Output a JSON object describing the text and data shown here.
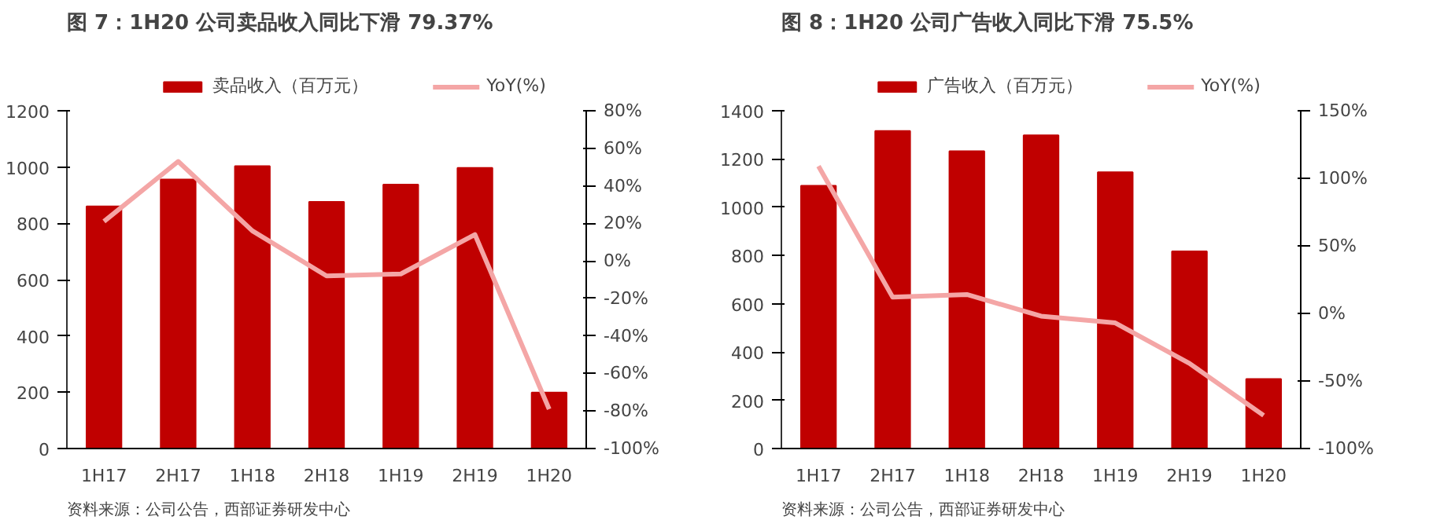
{
  "chart_data": [
    {
      "type": "bar",
      "title": "图 7：1H20 公司卖品收入同比下滑 79.37%",
      "categories": [
        "1H17",
        "2H17",
        "1H18",
        "2H18",
        "1H19",
        "2H19",
        "1H20"
      ],
      "series": [
        {
          "name": "卖品收入（百万元）",
          "color": "#c00000",
          "values": [
            860,
            956,
            1003,
            876,
            938,
            997,
            199
          ]
        },
        {
          "name": "YoY(%)",
          "color": "#f4a6a6",
          "type": "line",
          "axis": "y2",
          "values": [
            21,
            53,
            16,
            -8,
            -7,
            14,
            -79
          ]
        }
      ],
      "ylim": [
        0,
        1200
      ],
      "yticks": [
        0,
        200,
        400,
        600,
        800,
        1000,
        1200
      ],
      "y2lim": [
        -100,
        80
      ],
      "y2ticks": [
        {
          "value": -100,
          "label": "-100%"
        },
        {
          "value": -80,
          "label": "-80%"
        },
        {
          "value": -60,
          "label": "-60%"
        },
        {
          "value": -40,
          "label": "-40%"
        },
        {
          "value": -20,
          "label": "-20%"
        },
        {
          "value": 0,
          "label": "0%"
        },
        {
          "value": 20,
          "label": "20%"
        },
        {
          "value": 40,
          "label": "40%"
        },
        {
          "value": 60,
          "label": "60%"
        },
        {
          "value": 80,
          "label": "80%"
        }
      ],
      "legend": "top",
      "annotations": [
        "资料来源：公司公告，西部证券研发中心"
      ]
    },
    {
      "type": "bar",
      "title": "图 8：1H20 公司广告收入同比下滑 75.5%",
      "categories": [
        "1H17",
        "2H17",
        "1H18",
        "2H18",
        "1H19",
        "2H19",
        "1H20"
      ],
      "series": [
        {
          "name": "广告收入（百万元）",
          "color": "#c00000",
          "values": [
            1089,
            1316,
            1232,
            1298,
            1145,
            817,
            288
          ]
        },
        {
          "name": "YoY(%)",
          "color": "#f4a6a6",
          "type": "line",
          "axis": "y2",
          "values": [
            109,
            12,
            14,
            -2,
            -7,
            -37,
            -75.5
          ]
        }
      ],
      "ylim": [
        0,
        1400
      ],
      "yticks": [
        0,
        200,
        400,
        600,
        800,
        1000,
        1200,
        1400
      ],
      "y2lim": [
        -100,
        150
      ],
      "y2ticks": [
        {
          "value": -100,
          "label": "-100%"
        },
        {
          "value": -50,
          "label": "-50%"
        },
        {
          "value": 0,
          "label": "0%"
        },
        {
          "value": 50,
          "label": "50%"
        },
        {
          "value": 100,
          "label": "100%"
        },
        {
          "value": 150,
          "label": "150%"
        }
      ],
      "legend": "top",
      "annotations": [
        "资料来源：公司公告，西部证券研发中心"
      ]
    }
  ]
}
